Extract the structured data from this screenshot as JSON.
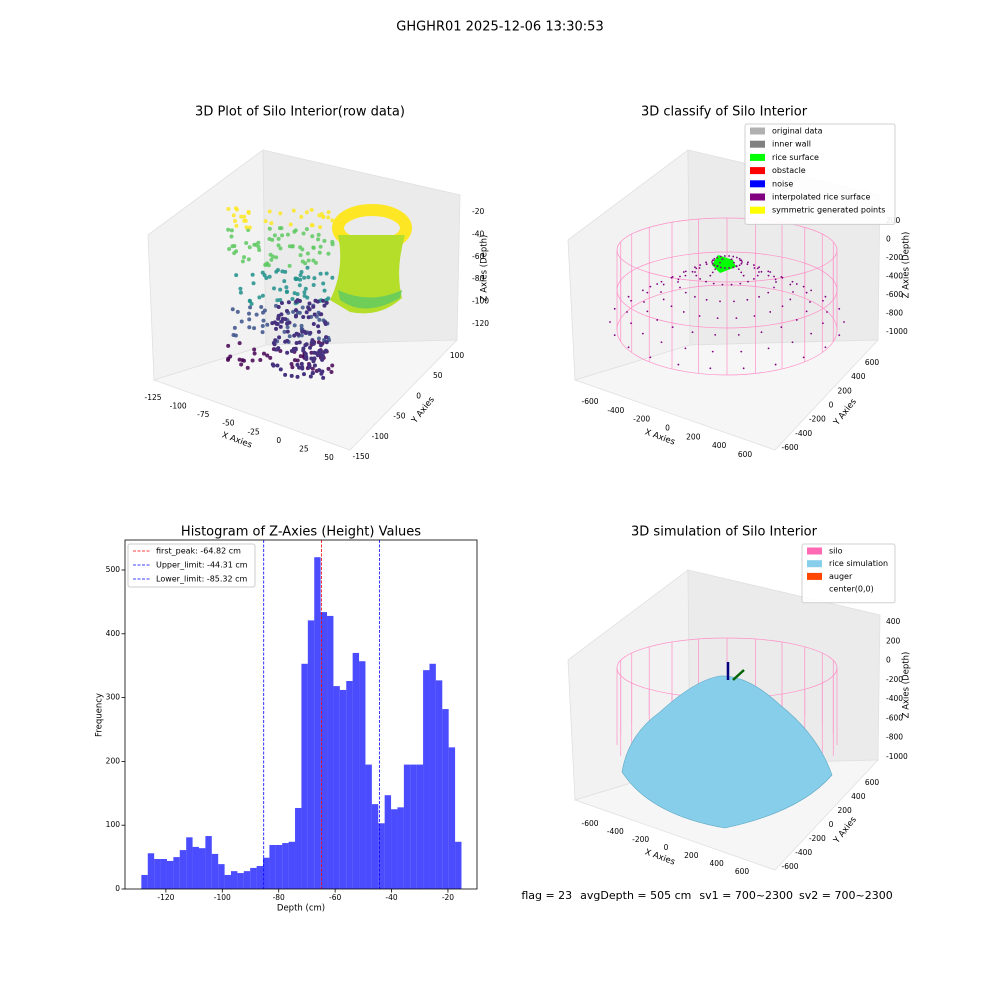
{
  "title": "GHGHR01 2025-12-06 13:30:53",
  "chart_data": [
    {
      "type": "scatter3d",
      "title": "3D Plot of Silo Interior(row data)",
      "xlabel": "X Axies",
      "ylabel": "Y Axies",
      "zlabel": "Z Axies (Depth)",
      "xticks": [
        -125,
        -100,
        -75,
        -50,
        -25,
        0,
        25,
        50
      ],
      "yticks": [
        100,
        50,
        0,
        -50,
        -100,
        -150
      ],
      "zticks": [
        -20,
        -40,
        -60,
        -80,
        -100,
        -120
      ]
    },
    {
      "type": "scatter3d",
      "title": "3D classify of Silo Interior",
      "xlabel": "X Axies",
      "ylabel": "Y Axies",
      "zlabel": "Z Axies (Depth)",
      "xticks": [
        -600,
        -400,
        -200,
        0,
        200,
        400,
        600
      ],
      "yticks": [
        600,
        400,
        200,
        0,
        -200,
        -400,
        -600
      ],
      "zticks": [
        200,
        0,
        -200,
        -400,
        -600,
        -800,
        -1000
      ],
      "legend": [
        {
          "name": "original data",
          "color": "#b0b0b0"
        },
        {
          "name": "inner wall",
          "color": "#808080"
        },
        {
          "name": "rice surface",
          "color": "#00ff00"
        },
        {
          "name": "obstacle",
          "color": "#ff0000"
        },
        {
          "name": "noise",
          "color": "#0000ff"
        },
        {
          "name": "interpolated rice surface",
          "color": "#800080"
        },
        {
          "name": "symmetric generated points",
          "color": "#ffff00"
        }
      ]
    },
    {
      "type": "histogram",
      "title": "Histogram of Z-Axies (Height) Values",
      "xlabel": "Depth (cm)",
      "ylabel": "Frequency",
      "color": "#0000ff",
      "bins": [
        -128.7,
        -126.43,
        -124.16,
        -121.89,
        -119.62,
        -117.35,
        -115.08,
        -112.81,
        -110.54,
        -108.27,
        -106.0,
        -103.73,
        -101.46,
        -99.19,
        -96.92,
        -94.65,
        -92.38,
        -90.11,
        -87.84,
        -85.57,
        -83.3,
        -81.03,
        -78.76,
        -76.49,
        -74.22,
        -71.95,
        -69.68,
        -67.41,
        -65.14,
        -62.87,
        -60.6,
        -58.33,
        -56.06,
        -53.79,
        -51.52,
        -49.25,
        -46.98,
        -44.71,
        -42.44,
        -40.17,
        -37.9,
        -35.63,
        -33.36,
        -31.09,
        -28.82,
        -26.55,
        -24.28,
        -22.01,
        -19.74,
        -17.47,
        -15.2
      ],
      "counts": [
        22,
        56,
        47,
        47,
        44,
        50,
        61,
        81,
        66,
        64,
        83,
        55,
        39,
        22,
        28,
        25,
        28,
        33,
        36,
        49,
        69,
        69,
        72,
        74,
        127,
        353,
        421,
        520,
        434,
        428,
        318,
        312,
        326,
        370,
        357,
        195,
        133,
        103,
        147,
        125,
        128,
        195,
        195,
        195,
        343,
        353,
        327,
        282,
        222,
        74
      ],
      "xlim": [
        -134.5,
        -9.7
      ],
      "ylim": [
        0,
        547
      ],
      "xticks": [
        -120,
        -100,
        -80,
        -60,
        -40,
        -20
      ],
      "yticks": [
        0,
        100,
        200,
        300,
        400,
        500
      ],
      "lines": [
        {
          "label": "first_peak: -64.82 cm",
          "value": -64.82,
          "color": "#ff0000"
        },
        {
          "label": "Upper_limit: -44.31 cm",
          "value": -44.31,
          "color": "#0000ff"
        },
        {
          "label": "Lower_limit: -85.32 cm",
          "value": -85.32,
          "color": "#0000ff"
        }
      ]
    },
    {
      "type": "surface3d",
      "title": "3D simulation of Silo Interior",
      "xlabel": "X Axies",
      "ylabel": "Y Axies",
      "zlabel": "Z Axies (Depth)",
      "xticks": [
        -600,
        -400,
        -200,
        0,
        200,
        400,
        600
      ],
      "yticks": [
        600,
        400,
        200,
        0,
        -200,
        -400,
        -600
      ],
      "zticks": [
        400,
        200,
        0,
        -200,
        -400,
        -600,
        -800,
        -1000
      ],
      "legend": [
        {
          "name": "silo",
          "color": "#ff69b4"
        },
        {
          "name": "rice simulation",
          "color": "#87ceeb"
        },
        {
          "name": "auger",
          "color": "#ff4500"
        },
        {
          "name": "center(0,0)"
        }
      ]
    }
  ],
  "footer": [
    "flag = 23",
    "avgDepth = 505 cm",
    "sv1 = 700~2300",
    "sv2 = 700~2300"
  ]
}
